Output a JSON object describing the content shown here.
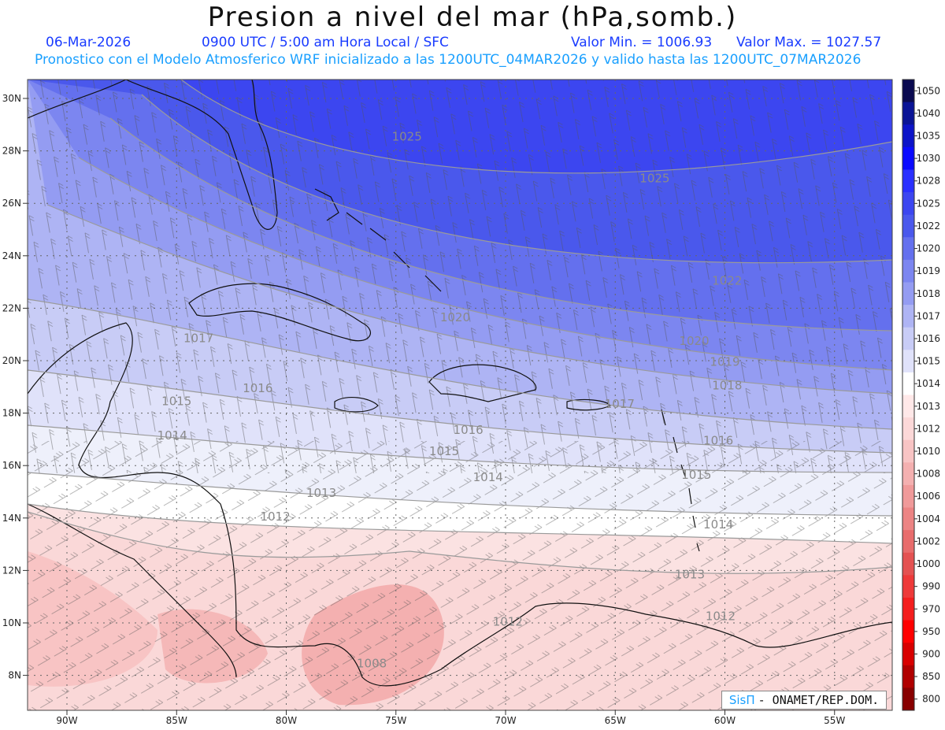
{
  "header": {
    "title": "Presion a nivel del mar (hPa,somb.)",
    "date": "06-Mar-2026",
    "time_line": "0900 UTC / 5:00 am Hora Local / SFC",
    "min_line": "Valor Min. = 1006.93",
    "max_line": "Valor Max. = 1027.57",
    "model_line": "Pronostico con el Modelo Atmosferico WRF inicializado a las 1200UTC_04MAR2026 y valido hasta las  1200UTC_07MAR2026"
  },
  "map": {
    "lon_labels": [
      "90W",
      "85W",
      "80W",
      "75W",
      "70W",
      "65W",
      "60W",
      "55W"
    ],
    "lon_values": [
      -90,
      -85,
      -80,
      -75,
      -70,
      -65,
      -60,
      -55
    ],
    "lat_labels": [
      "30N",
      "28N",
      "26N",
      "24N",
      "22N",
      "20N",
      "18N",
      "16N",
      "14N",
      "12N",
      "10N",
      "8N"
    ],
    "lat_values": [
      30,
      28,
      26,
      24,
      22,
      20,
      18,
      16,
      14,
      12,
      10,
      8
    ],
    "isobars": [
      {
        "label": "1025",
        "lon": -74.5,
        "lat": 28.4
      },
      {
        "label": "1025",
        "lon": -63.2,
        "lat": 26.8
      },
      {
        "label": "1022",
        "lon": -59.9,
        "lat": 22.9
      },
      {
        "label": "1020",
        "lon": -72.3,
        "lat": 21.5
      },
      {
        "label": "1020",
        "lon": -61.4,
        "lat": 20.6
      },
      {
        "label": "1019",
        "lon": -60.0,
        "lat": 19.8
      },
      {
        "label": "1018",
        "lon": -59.9,
        "lat": 18.9
      },
      {
        "label": "1017",
        "lon": -84.0,
        "lat": 20.7
      },
      {
        "label": "1017",
        "lon": -64.8,
        "lat": 18.2
      },
      {
        "label": "1016",
        "lon": -81.3,
        "lat": 18.8
      },
      {
        "label": "1016",
        "lon": -71.7,
        "lat": 17.2
      },
      {
        "label": "1016",
        "lon": -60.3,
        "lat": 16.8
      },
      {
        "label": "1015",
        "lon": -85.0,
        "lat": 18.3
      },
      {
        "label": "1015",
        "lon": -72.8,
        "lat": 16.4
      },
      {
        "label": "1015",
        "lon": -61.3,
        "lat": 15.5
      },
      {
        "label": "1014",
        "lon": -85.2,
        "lat": 17.0
      },
      {
        "label": "1014",
        "lon": -70.8,
        "lat": 15.4
      },
      {
        "label": "1014",
        "lon": -60.3,
        "lat": 13.6
      },
      {
        "label": "1013",
        "lon": -78.4,
        "lat": 14.8
      },
      {
        "label": "1013",
        "lon": -61.6,
        "lat": 11.7
      },
      {
        "label": "1012",
        "lon": -80.5,
        "lat": 13.9
      },
      {
        "label": "1012",
        "lon": -69.9,
        "lat": 9.9
      },
      {
        "label": "1012",
        "lon": -60.2,
        "lat": 10.1
      },
      {
        "label": "1008",
        "lon": -76.1,
        "lat": 8.3
      }
    ]
  },
  "colorbar": {
    "labels": [
      "1050",
      "1040",
      "1035",
      "1030",
      "1028",
      "1025",
      "1022",
      "1020",
      "1019",
      "1018",
      "1017",
      "1016",
      "1015",
      "1014",
      "1013",
      "1012",
      "1010",
      "1008",
      "1006",
      "1004",
      "1002",
      "1000",
      "990",
      "970",
      "950",
      "900",
      "850",
      "800"
    ],
    "colors": [
      "#0a0a50",
      "#0a1496",
      "#0c14c8",
      "#0a0aff",
      "#2a30ff",
      "#3c46f0",
      "#4a58ec",
      "#6470ee",
      "#7c86f0",
      "#949cf2",
      "#aeb4f4",
      "#c8ccf6",
      "#e0e2fa",
      "#ffffff",
      "#ffe8e8",
      "#fcd8d8",
      "#f8c4c4",
      "#f4b0b0",
      "#f09a9a",
      "#ec8484",
      "#e86c6c",
      "#e45252",
      "#ee3a3a",
      "#f41e1e",
      "#ff0000",
      "#d80000",
      "#b00000",
      "#880000"
    ]
  },
  "credit": {
    "brand": "SisΠ",
    "org": "- ONAMET/REP.DOM."
  }
}
